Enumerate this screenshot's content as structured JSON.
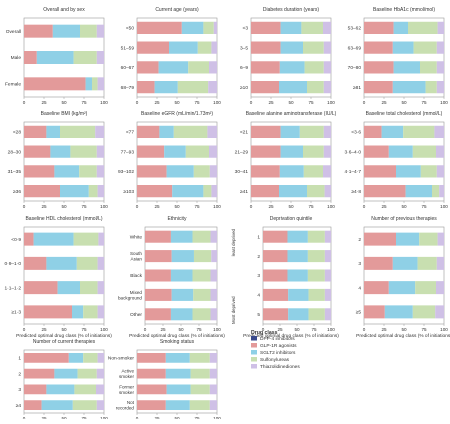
{
  "colors": {
    "DPP-4 inhibitors": "#3a4a8c",
    "GLP-1R agonists": "#e39a9a",
    "SGLT2 inhibitors": "#8fd0e6",
    "Sulfonylureas": "#c8dfb0",
    "Thiazolidinediones": "#cfc0e6"
  },
  "legend": {
    "title": "Drug class",
    "items": [
      "DPP-4 inhibitors",
      "GLP-1R agonists",
      "SGLT2 inhibitors",
      "Sulfonylureas",
      "Thiazolidinediones"
    ]
  },
  "shared_axis": {
    "xlabel": "Predicted optimal drug class (% of initiations)",
    "ticks": [
      "0",
      "25",
      "50",
      "75",
      "100"
    ],
    "xlim": [
      0,
      100
    ]
  },
  "chart_data": [
    {
      "type": "bar",
      "stacked": true,
      "orientation": "horizontal",
      "title": "Overall and by sex",
      "categories": [
        "Overall",
        "Male",
        "Female"
      ],
      "series": [
        {
          "name": "DPP-4 inhibitors",
          "values": [
            0,
            0,
            0
          ]
        },
        {
          "name": "GLP-1R agonists",
          "values": [
            36,
            16,
            77
          ]
        },
        {
          "name": "SGLT2 inhibitors",
          "values": [
            34,
            46,
            8
          ]
        },
        {
          "name": "Sulfonylureas",
          "values": [
            21,
            29,
            7
          ]
        },
        {
          "name": "Thiazolidinediones",
          "values": [
            9,
            9,
            8
          ]
        }
      ]
    },
    {
      "type": "bar",
      "stacked": true,
      "orientation": "horizontal",
      "title": "Current age (years)",
      "categories": [
        "<50",
        "51–59",
        "60–67",
        "68–79"
      ],
      "series": [
        {
          "name": "DPP-4 inhibitors",
          "values": [
            0,
            0,
            0,
            0
          ]
        },
        {
          "name": "GLP-1R agonists",
          "values": [
            56,
            40,
            27,
            22
          ]
        },
        {
          "name": "SGLT2 inhibitors",
          "values": [
            27,
            36,
            37,
            29
          ]
        },
        {
          "name": "Sulfonylureas",
          "values": [
            13,
            17,
            26,
            38
          ]
        },
        {
          "name": "Thiazolidinediones",
          "values": [
            4,
            7,
            10,
            11
          ]
        }
      ]
    },
    {
      "type": "bar",
      "stacked": true,
      "orientation": "horizontal",
      "title": "Diabetes duration (years)",
      "categories": [
        "<3",
        "3–5",
        "6–9",
        "≥10"
      ],
      "series": [
        {
          "name": "DPP-4 inhibitors",
          "values": [
            0,
            0,
            0,
            0
          ]
        },
        {
          "name": "GLP-1R agonists",
          "values": [
            37,
            37,
            36,
            35
          ]
        },
        {
          "name": "SGLT2 inhibitors",
          "values": [
            26,
            28,
            31,
            35
          ]
        },
        {
          "name": "Sulfonylureas",
          "values": [
            27,
            26,
            24,
            21
          ]
        },
        {
          "name": "Thiazolidinediones",
          "values": [
            10,
            9,
            9,
            9
          ]
        }
      ]
    },
    {
      "type": "bar",
      "stacked": true,
      "orientation": "horizontal",
      "title": "Baseline HbA1c (mmol/mol)",
      "categories": [
        "53–62",
        "63–69",
        "70–80",
        "≥81"
      ],
      "series": [
        {
          "name": "DPP-4 inhibitors",
          "values": [
            0,
            0,
            0,
            0
          ]
        },
        {
          "name": "GLP-1R agonists",
          "values": [
            37,
            36,
            37,
            36
          ]
        },
        {
          "name": "SGLT2 inhibitors",
          "values": [
            18,
            26,
            33,
            41
          ]
        },
        {
          "name": "Sulfonylureas",
          "values": [
            37,
            29,
            21,
            14
          ]
        },
        {
          "name": "Thiazolidinediones",
          "values": [
            8,
            9,
            9,
            9
          ]
        }
      ]
    },
    {
      "type": "bar",
      "stacked": true,
      "orientation": "horizontal",
      "title": "Baseline BMI (kg/m²)",
      "categories": [
        "<28",
        "28–30",
        "31–35",
        "≥36"
      ],
      "series": [
        {
          "name": "DPP-4 inhibitors",
          "values": [
            0,
            0,
            0,
            0
          ]
        },
        {
          "name": "GLP-1R agonists",
          "values": [
            28,
            33,
            38,
            45
          ]
        },
        {
          "name": "SGLT2 inhibitors",
          "values": [
            17,
            25,
            31,
            36
          ]
        },
        {
          "name": "Sulfonylureas",
          "values": [
            44,
            33,
            22,
            11
          ]
        },
        {
          "name": "Thiazolidinediones",
          "values": [
            11,
            9,
            9,
            8
          ]
        }
      ]
    },
    {
      "type": "bar",
      "stacked": true,
      "orientation": "horizontal",
      "title": "Baseline eGFR (mL/min/1.73m²)",
      "categories": [
        "<77",
        "77–93",
        "93–102",
        "≥103"
      ],
      "series": [
        {
          "name": "DPP-4 inhibitors",
          "values": [
            0,
            0,
            0,
            0
          ]
        },
        {
          "name": "GLP-1R agonists",
          "values": [
            28,
            34,
            37,
            44
          ]
        },
        {
          "name": "SGLT2 inhibitors",
          "values": [
            18,
            27,
            34,
            39
          ]
        },
        {
          "name": "Sulfonylureas",
          "values": [
            42,
            29,
            20,
            10
          ]
        },
        {
          "name": "Thiazolidinediones",
          "values": [
            12,
            10,
            9,
            7
          ]
        }
      ]
    },
    {
      "type": "bar",
      "stacked": true,
      "orientation": "horizontal",
      "title": "Baseline alanine aminotransferase (IU/L)",
      "categories": [
        "<21",
        "21–29",
        "30–41",
        "≥41"
      ],
      "series": [
        {
          "name": "DPP-4 inhibitors",
          "values": [
            0,
            0,
            0,
            0
          ]
        },
        {
          "name": "GLP-1R agonists",
          "values": [
            37,
            37,
            36,
            35
          ]
        },
        {
          "name": "SGLT2 inhibitors",
          "values": [
            24,
            28,
            30,
            35
          ]
        },
        {
          "name": "Sulfonylureas",
          "values": [
            30,
            26,
            24,
            22
          ]
        },
        {
          "name": "Thiazolidinediones",
          "values": [
            9,
            9,
            10,
            8
          ]
        }
      ]
    },
    {
      "type": "bar",
      "stacked": true,
      "orientation": "horizontal",
      "title": "Baseline total cholesterol (mmol/L)",
      "categories": [
        "<3·6",
        "3·6–4·0",
        "4·1–4·7",
        "≥4·8"
      ],
      "series": [
        {
          "name": "DPP-4 inhibitors",
          "values": [
            0,
            0,
            0,
            0
          ]
        },
        {
          "name": "GLP-1R agonists",
          "values": [
            22,
            31,
            40,
            52
          ]
        },
        {
          "name": "SGLT2 inhibitors",
          "values": [
            27,
            30,
            31,
            33
          ]
        },
        {
          "name": "Sulfonylureas",
          "values": [
            39,
            29,
            20,
            9
          ]
        },
        {
          "name": "Thiazolidinediones",
          "values": [
            12,
            10,
            9,
            6
          ]
        }
      ]
    },
    {
      "type": "bar",
      "stacked": true,
      "orientation": "horizontal",
      "title": "Baseline HDL cholesterol (mmol/L)",
      "categories": [
        "<0·9",
        "0·9–1·0",
        "1·1–1·2",
        "≥1·3"
      ],
      "series": [
        {
          "name": "DPP-4 inhibitors",
          "values": [
            0,
            0,
            0,
            0
          ]
        },
        {
          "name": "GLP-1R agonists",
          "values": [
            12,
            28,
            42,
            60
          ]
        },
        {
          "name": "SGLT2 inhibitors",
          "values": [
            50,
            38,
            28,
            14
          ]
        },
        {
          "name": "Sulfonylureas",
          "values": [
            31,
            26,
            22,
            18
          ]
        },
        {
          "name": "Thiazolidinediones",
          "values": [
            7,
            8,
            8,
            8
          ]
        }
      ]
    },
    {
      "type": "bar",
      "stacked": true,
      "orientation": "horizontal",
      "title": "Ethnicity",
      "categories": [
        "White",
        "South Asian",
        "Black",
        "Mixed background",
        "Other"
      ],
      "series": [
        {
          "name": "DPP-4 inhibitors",
          "values": [
            0,
            0,
            0,
            0,
            0
          ]
        },
        {
          "name": "GLP-1R agonists",
          "values": [
            36,
            37,
            36,
            37,
            36
          ]
        },
        {
          "name": "SGLT2 inhibitors",
          "values": [
            30,
            31,
            30,
            30,
            30
          ]
        },
        {
          "name": "Sulfonylureas",
          "values": [
            25,
            24,
            25,
            24,
            25
          ]
        },
        {
          "name": "Thiazolidinediones",
          "values": [
            9,
            8,
            9,
            9,
            9
          ]
        }
      ]
    },
    {
      "type": "bar",
      "stacked": true,
      "orientation": "horizontal",
      "title": "Deprivation quintile",
      "categories": [
        "1",
        "2",
        "3",
        "4",
        "5"
      ],
      "y_annotations": [
        "least deprived",
        "Most deprived"
      ],
      "series": [
        {
          "name": "DPP-4 inhibitors",
          "values": [
            0,
            0,
            0,
            0,
            0
          ]
        },
        {
          "name": "GLP-1R agonists",
          "values": [
            36,
            36,
            36,
            37,
            37
          ]
        },
        {
          "name": "SGLT2 inhibitors",
          "values": [
            30,
            30,
            30,
            30,
            30
          ]
        },
        {
          "name": "Sulfonylureas",
          "values": [
            25,
            25,
            25,
            24,
            24
          ]
        },
        {
          "name": "Thiazolidinediones",
          "values": [
            9,
            9,
            9,
            9,
            9
          ]
        }
      ]
    },
    {
      "type": "bar",
      "stacked": true,
      "orientation": "horizontal",
      "title": "Number of previous therapies",
      "categories": [
        "2",
        "3",
        "4",
        "≥5"
      ],
      "series": [
        {
          "name": "DPP-4 inhibitors",
          "values": [
            0,
            0,
            0,
            0
          ]
        },
        {
          "name": "GLP-1R agonists",
          "values": [
            40,
            36,
            31,
            26
          ]
        },
        {
          "name": "SGLT2 inhibitors",
          "values": [
            29,
            31,
            33,
            35
          ]
        },
        {
          "name": "Sulfonylureas",
          "values": [
            23,
            24,
            26,
            28
          ]
        },
        {
          "name": "Thiazolidinediones",
          "values": [
            8,
            9,
            10,
            11
          ]
        }
      ]
    },
    {
      "type": "bar",
      "stacked": true,
      "orientation": "horizontal",
      "title": "Number of current therapies",
      "categories": [
        "1",
        "2",
        "3",
        "≥4"
      ],
      "series": [
        {
          "name": "DPP-4 inhibitors",
          "values": [
            0,
            0,
            0,
            0
          ]
        },
        {
          "name": "GLP-1R agonists",
          "values": [
            56,
            38,
            28,
            22
          ]
        },
        {
          "name": "SGLT2 inhibitors",
          "values": [
            18,
            29,
            35,
            39
          ]
        },
        {
          "name": "Sulfonylureas",
          "values": [
            18,
            24,
            27,
            30
          ]
        },
        {
          "name": "Thiazolidinediones",
          "values": [
            8,
            9,
            10,
            9
          ]
        }
      ]
    },
    {
      "type": "bar",
      "stacked": true,
      "orientation": "horizontal",
      "title": "Smoking status",
      "categories": [
        "Non-smoker",
        "Active smoker",
        "Former smoker",
        "Not recorded"
      ],
      "series": [
        {
          "name": "DPP-4 inhibitors",
          "values": [
            0,
            0,
            0,
            0
          ]
        },
        {
          "name": "GLP-1R agonists",
          "values": [
            36,
            36,
            37,
            36
          ]
        },
        {
          "name": "SGLT2 inhibitors",
          "values": [
            30,
            31,
            30,
            30
          ]
        },
        {
          "name": "Sulfonylureas",
          "values": [
            25,
            24,
            24,
            25
          ]
        },
        {
          "name": "Thiazolidinediones",
          "values": [
            9,
            9,
            9,
            9
          ]
        }
      ]
    }
  ]
}
